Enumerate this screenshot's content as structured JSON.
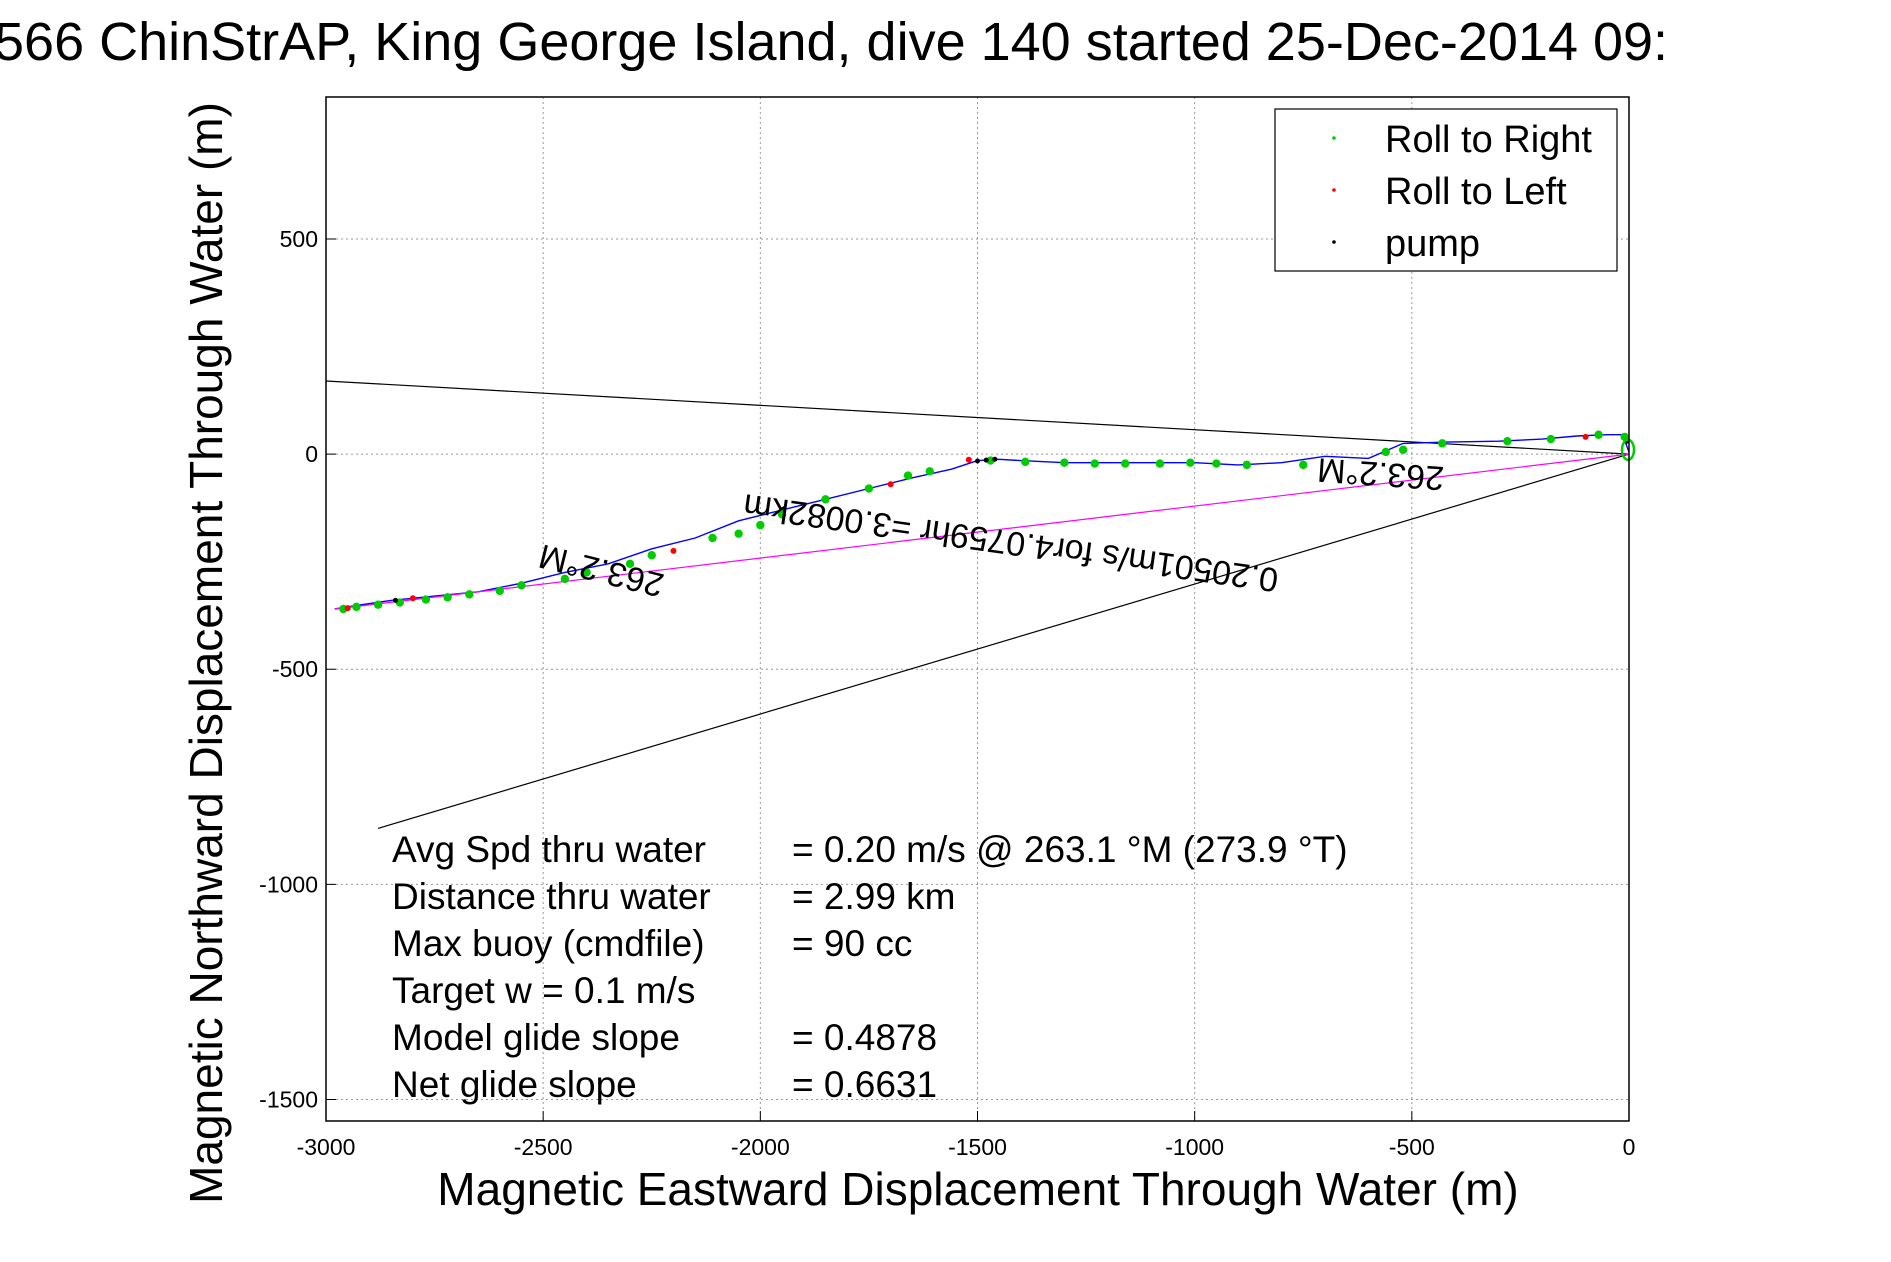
{
  "chart_data": {
    "type": "line",
    "title": "566 ChinStrAP, King George Island, dive 140 started 25-Dec-2014 09:",
    "xlabel": "Magnetic Eastward Displacement Through Water (m)",
    "ylabel": "Magnetic Northward Displacement Through Water (m)",
    "xlim": [
      -3000,
      0
    ],
    "ylim": [
      -1550,
      830
    ],
    "xticks": [
      -3000,
      -2500,
      -2000,
      -1500,
      -1000,
      -500,
      0
    ],
    "yticks": [
      500,
      0,
      -500,
      -1000,
      -1500
    ],
    "grid": true,
    "legend": {
      "placement": "top-right",
      "entries": [
        {
          "label": "Roll to Right",
          "color": "#00cc00"
        },
        {
          "label": "Roll to Left",
          "color": "#ff0000"
        },
        {
          "label": "pump",
          "color": "#000000"
        }
      ]
    },
    "series": [
      {
        "role": "track",
        "color": "#0000ff",
        "x": [
          0,
          -15,
          -50,
          -120,
          -200,
          -300,
          -420,
          -520,
          -600,
          -700,
          -800,
          -900,
          -1000,
          -1100,
          -1200,
          -1300,
          -1400,
          -1450,
          -1500,
          -1560,
          -1650,
          -1750,
          -1850,
          -1950,
          -2050,
          -2150,
          -2250,
          -2350,
          -2450,
          -2550,
          -2650,
          -2750,
          -2850,
          -2950,
          -2980
        ],
        "y": [
          5,
          45,
          45,
          42,
          35,
          30,
          28,
          25,
          -10,
          -5,
          -20,
          -25,
          -20,
          -20,
          -20,
          -20,
          -15,
          -12,
          -15,
          -35,
          -55,
          -80,
          -105,
          -130,
          -155,
          -195,
          -220,
          -255,
          -275,
          -300,
          -320,
          -330,
          -340,
          -355,
          -360
        ]
      },
      {
        "role": "net-displacement",
        "color": "#ff00ff",
        "x": [
          0,
          -2980
        ],
        "y": [
          0,
          -360
        ]
      },
      {
        "role": "reference-line",
        "color": "#000000",
        "x": [
          0,
          -3000
        ],
        "y": [
          0,
          170
        ]
      },
      {
        "role": "reference-line",
        "color": "#000000",
        "x": [
          0,
          -2880
        ],
        "y": [
          0,
          -870
        ]
      }
    ],
    "markers": {
      "roll_right": {
        "color": "#00cc00",
        "x": [
          -10,
          -70,
          -180,
          -280,
          -430,
          -520,
          -560,
          -750,
          -880,
          -950,
          -1010,
          -1080,
          -1160,
          -1230,
          -1300,
          -1390,
          -1470,
          -1610,
          -1660,
          -1750,
          -1850,
          -1950,
          -2000,
          -2050,
          -2110,
          -2250,
          -2300,
          -2400,
          -2450,
          -2550,
          -2600,
          -2670,
          -2720,
          -2770,
          -2830,
          -2880,
          -2930,
          -2960
        ],
        "y": [
          40,
          45,
          35,
          30,
          25,
          10,
          5,
          -25,
          -25,
          -22,
          -20,
          -22,
          -22,
          -22,
          -20,
          -18,
          -15,
          -40,
          -50,
          -80,
          -105,
          -140,
          -165,
          -185,
          -195,
          -235,
          -255,
          -275,
          -290,
          -305,
          -318,
          -326,
          -333,
          -338,
          -345,
          -350,
          -355,
          -360
        ]
      },
      "roll_left": {
        "color": "#ff0000",
        "x": [
          -100,
          -1520,
          -1700,
          -2200,
          -2800,
          -2950
        ],
        "y": [
          40,
          -13,
          -70,
          -225,
          -335,
          -358
        ]
      },
      "pump": {
        "color": "#000000",
        "x": [
          -5,
          -1460,
          -1480,
          -1500,
          -2840
        ],
        "y": [
          30,
          -12,
          -14,
          -16,
          -340
        ]
      }
    },
    "annotations": [
      {
        "text": "263.2°M",
        "x": -2360,
        "y": -245,
        "rotate": 194
      },
      {
        "text": "263.2°M",
        "x": -570,
        "y": -20,
        "rotate": 184
      },
      {
        "text": "0.20501m/s for4.0759hr =3.0082km",
        "x": -1420,
        "y": -180,
        "rotate": 188
      }
    ],
    "summary": [
      {
        "label": "Avg Spd thru water",
        "value": "=  0.20 m/s @ 263.1 °M (273.9 °T)"
      },
      {
        "label": "Distance thru water",
        "value": "=  2.99 km"
      },
      {
        "label": "Max buoy (cmdfile)",
        "value": "= 90 cc"
      },
      {
        "label": "Target w     = 0.1 m/s",
        "value": ""
      },
      {
        "label": "Model glide slope",
        "value": "= 0.4878"
      },
      {
        "label": "Net glide slope",
        "value": "= 0.6631"
      }
    ]
  }
}
